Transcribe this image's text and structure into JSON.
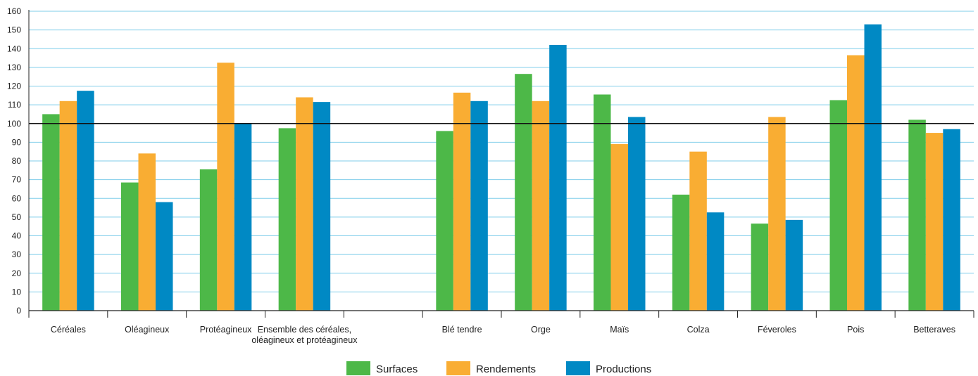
{
  "chart_data": {
    "type": "bar",
    "ylim": [
      0,
      160
    ],
    "yticks": [
      0,
      10,
      20,
      30,
      40,
      50,
      60,
      70,
      80,
      90,
      100,
      110,
      120,
      130,
      140,
      150,
      160
    ],
    "reference_line": 100,
    "grid": "horizontal",
    "legend_position": "bottom-center",
    "categories": [
      [
        "Céréales"
      ],
      [
        "Oléagineux"
      ],
      [
        "Protéagineux"
      ],
      [
        "Ensemble des céréales,",
        "oléagineux et protéagineux"
      ],
      [
        ""
      ],
      [
        "Blé tendre"
      ],
      [
        "Orge"
      ],
      [
        "Maïs"
      ],
      [
        "Colza"
      ],
      [
        "Féveroles"
      ],
      [
        "Pois"
      ],
      [
        "Betteraves"
      ]
    ],
    "series": [
      {
        "name": "Surfaces",
        "color": "#4db848",
        "values": [
          105,
          68.5,
          75.5,
          97.5,
          null,
          96,
          126.5,
          115.5,
          62,
          46.5,
          112.5,
          102
        ]
      },
      {
        "name": "Rendements",
        "color": "#f9ad33",
        "values": [
          112,
          84,
          132.5,
          114,
          null,
          116.5,
          112,
          89,
          85,
          103.5,
          136.5,
          95
        ]
      },
      {
        "name": "Productions",
        "color": "#0089c4",
        "values": [
          117.5,
          58,
          100,
          111.5,
          null,
          112,
          142,
          103.5,
          52.5,
          48.5,
          153,
          97
        ]
      }
    ]
  }
}
